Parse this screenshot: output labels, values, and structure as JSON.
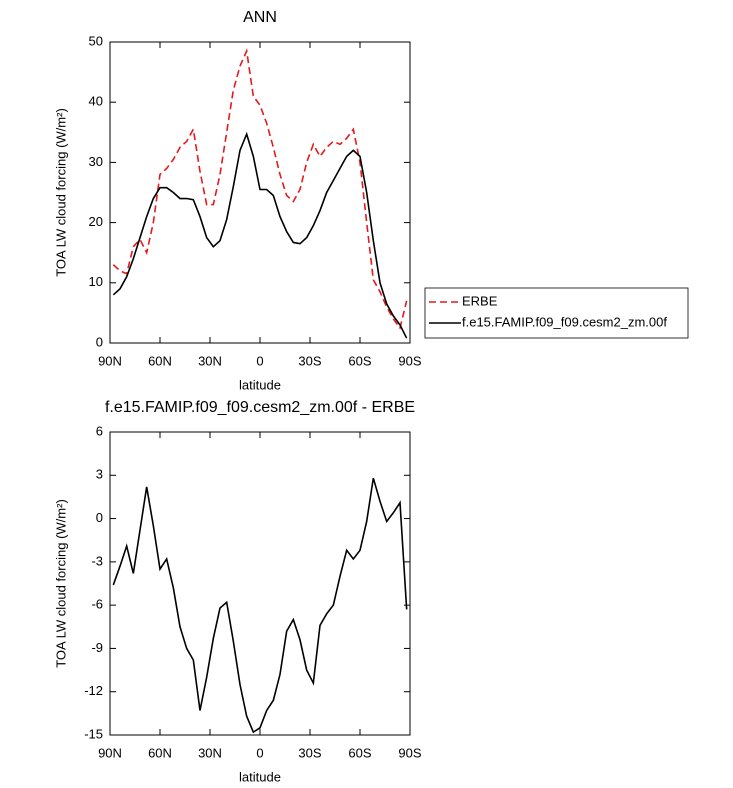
{
  "chart_data": [
    {
      "type": "line",
      "title": "ANN",
      "x_label": "latitude",
      "y_label": "TOA LW cloud forcing (W/m²)",
      "x": [
        88,
        84,
        80,
        76,
        72,
        68,
        64,
        60,
        56,
        52,
        48,
        44,
        40,
        36,
        32,
        28,
        24,
        20,
        16,
        12,
        8,
        4,
        0,
        -4,
        -8,
        -12,
        -16,
        -20,
        -24,
        -28,
        -32,
        -36,
        -40,
        -44,
        -48,
        -52,
        -56,
        -60,
        -64,
        -68,
        -72,
        -76,
        -80,
        -84,
        -88
      ],
      "series": [
        {
          "name": "ERBE",
          "color": "#e41a1c",
          "line_style": "dashed",
          "values": [
            13,
            12,
            11.5,
            16,
            17.2,
            15,
            20,
            28,
            29,
            30.5,
            32.5,
            33.5,
            35.5,
            28.5,
            23,
            23,
            28,
            35,
            42,
            46,
            48.5,
            41,
            39.5,
            36.5,
            32.5,
            28,
            24.5,
            23.5,
            25.5,
            30,
            33,
            31,
            32.5,
            33.5,
            33,
            34,
            35.5,
            30,
            20,
            10.5,
            8.5,
            6,
            4,
            2.5,
            7
          ]
        },
        {
          "name": "f.e15.FAMIP.f09_f09.cesm2_zm.00f",
          "color": "#000000",
          "line_style": "solid",
          "values": [
            8,
            9,
            11,
            14,
            17.5,
            21,
            24,
            25.8,
            25.8,
            25,
            24,
            24,
            23.8,
            21,
            17.5,
            16,
            17,
            20.5,
            26,
            32,
            34.7,
            31,
            25.5,
            25.5,
            24.5,
            21,
            18.5,
            16.7,
            16.5,
            17.5,
            19.5,
            22,
            25,
            27,
            29,
            31,
            32,
            31,
            25,
            17,
            10,
            6.5,
            4.5,
            3,
            0.8
          ]
        }
      ],
      "xlim": [
        90,
        -90
      ],
      "xticks": [
        {
          "value": 90,
          "label": "90N"
        },
        {
          "value": 60,
          "label": "60N"
        },
        {
          "value": 30,
          "label": "30N"
        },
        0,
        {
          "value": -30,
          "label": "30S"
        },
        {
          "value": -60,
          "label": "60S"
        },
        {
          "value": -90,
          "label": "90S"
        }
      ],
      "ylim": [
        0,
        50
      ],
      "yticks": [
        0,
        10,
        20,
        30,
        40,
        50
      ],
      "legend": "outside right"
    },
    {
      "type": "line",
      "title": "f.e15.FAMIP.f09_f09.cesm2_zm.00f - ERBE",
      "x_label": "latitude",
      "y_label": "TOA LW cloud forcing (W/m²)",
      "x": [
        88,
        84,
        80,
        76,
        72,
        68,
        64,
        60,
        56,
        52,
        48,
        44,
        40,
        36,
        32,
        28,
        24,
        20,
        16,
        12,
        8,
        4,
        0,
        -4,
        -8,
        -12,
        -16,
        -20,
        -24,
        -28,
        -32,
        -36,
        -40,
        -44,
        -48,
        -52,
        -56,
        -60,
        -64,
        -68,
        -72,
        -76,
        -80,
        -84,
        -88
      ],
      "series": [
        {
          "color": "#000000",
          "line_style": "solid",
          "values": [
            -4.6,
            -3.3,
            -1.9,
            -3.8,
            -0.8,
            2.2,
            -0.5,
            -3.5,
            -2.8,
            -4.8,
            -7.5,
            -9,
            -9.8,
            -13.3,
            -11,
            -8.3,
            -6.2,
            -5.8,
            -8.5,
            -11.5,
            -13.7,
            -14.8,
            -14.5,
            -13.3,
            -12.6,
            -10.8,
            -7.8,
            -7,
            -8.4,
            -10.5,
            -11.4,
            -7.4,
            -6.6,
            -6,
            -4,
            -2.2,
            -2.8,
            -2.2,
            -0.2,
            2.8,
            1.2,
            -0.2,
            0.4,
            1.1,
            -6.3
          ]
        }
      ],
      "xlim": [
        90,
        -90
      ],
      "xticks": [
        {
          "value": 90,
          "label": "90N"
        },
        {
          "value": 60,
          "label": "60N"
        },
        {
          "value": 30,
          "label": "30N"
        },
        0,
        {
          "value": -30,
          "label": "30S"
        },
        {
          "value": -60,
          "label": "60S"
        },
        {
          "value": -90,
          "label": "90S"
        }
      ],
      "ylim": [
        -15,
        6
      ],
      "yticks": [
        -15,
        -12,
        -9,
        -6,
        -3,
        0,
        3,
        6
      ]
    }
  ]
}
